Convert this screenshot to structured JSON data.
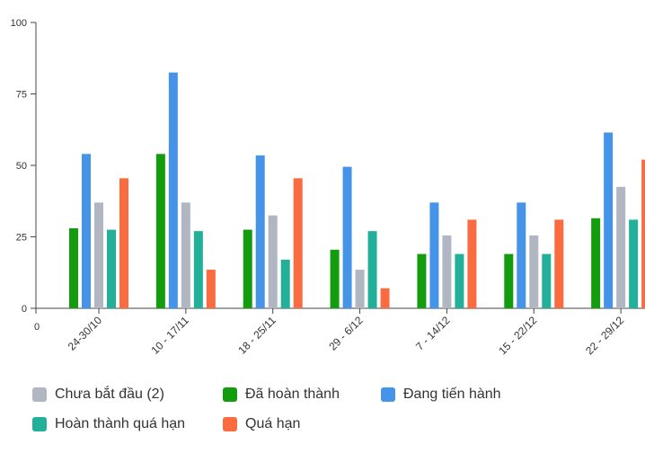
{
  "chart_data": {
    "type": "bar",
    "categories": [
      "24-30/10",
      "10 - 17/11",
      "18 - 25/11",
      "29 - 6/12",
      "7 - 14/12",
      "15 - 22/12",
      "22 - 29/12"
    ],
    "series": [
      {
        "name": "Đã hoàn thành",
        "color": "#139c0e",
        "values": [
          28,
          54,
          27.5,
          20.5,
          19,
          19,
          31.5
        ]
      },
      {
        "name": "Đang tiến hành",
        "color": "#4694e8",
        "values": [
          54,
          82.5,
          53.5,
          49.5,
          37,
          37,
          61.5
        ]
      },
      {
        "name": "Chưa bắt đầu (2)",
        "color": "#b0b7c3",
        "values": [
          37,
          37,
          32.5,
          13.5,
          25.5,
          25.5,
          42.5
        ]
      },
      {
        "name": "Hoàn thành quá hạn",
        "color": "#22b09a",
        "values": [
          27.5,
          27,
          17,
          27,
          19,
          19,
          31
        ]
      },
      {
        "name": "Quá hạn",
        "color": "#fb6b40",
        "values": [
          45.5,
          13.5,
          45.5,
          7,
          31,
          31,
          52
        ]
      }
    ],
    "y_ticks": [
      "0",
      "25",
      "50",
      "75",
      "100"
    ],
    "x_origin_label": "0",
    "ylim": [
      0,
      100
    ],
    "grid": false,
    "legend_position": "bottom",
    "legend_order": [
      "Chưa bắt đầu (2)",
      "Đã hoàn thành",
      "Đang tiến hành",
      "Hoàn thành quá hạn",
      "Quá hạn"
    ]
  }
}
